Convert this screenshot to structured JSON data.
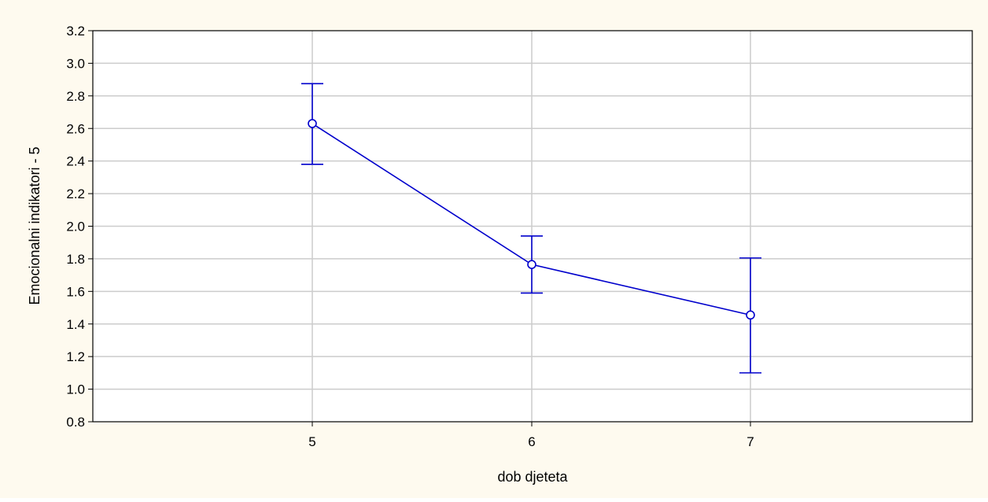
{
  "chart_data": {
    "type": "line",
    "title": "",
    "xlabel": "dob djeteta",
    "ylabel": "Emocionalni indikatori - 5",
    "categories": [
      "5",
      "6",
      "7"
    ],
    "series": [
      {
        "values": [
          2.63,
          1.765,
          1.455
        ],
        "err_low": [
          2.38,
          1.59,
          1.1
        ],
        "err_high": [
          2.875,
          1.94,
          1.805
        ]
      }
    ],
    "ylim": [
      0.8,
      3.2
    ],
    "yticks": [
      "0.8",
      "1.0",
      "1.2",
      "1.4",
      "1.6",
      "1.8",
      "2.0",
      "2.2",
      "2.4",
      "2.6",
      "2.8",
      "3.0",
      "3.2"
    ],
    "grid": true,
    "legend": "none",
    "colors": {
      "background": "#fefaef",
      "plot_background": "#ffffff",
      "series": "#0000cc",
      "grid": "#cccccc",
      "axis": "#000000"
    }
  }
}
